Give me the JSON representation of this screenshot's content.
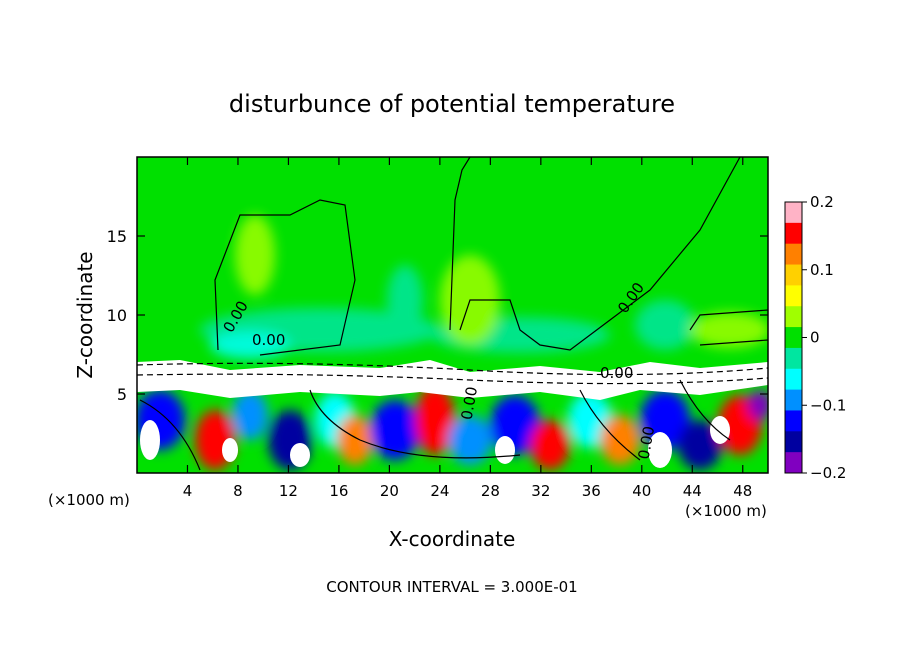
{
  "chart_data": {
    "type": "heatmap",
    "title": "disturbunce of potential temperature",
    "xlabel": "X-coordinate",
    "ylabel": "Z-coordinate",
    "x_unit": "(×1000 m)",
    "y_unit": "(×1000 m)",
    "xlim": [
      0,
      50
    ],
    "ylim": [
      0,
      20
    ],
    "x_ticks": [
      4,
      8,
      12,
      16,
      20,
      24,
      28,
      32,
      36,
      40,
      44,
      48
    ],
    "y_ticks": [
      5,
      10,
      15
    ],
    "colorbar": {
      "range": [
        -0.2,
        0.2
      ],
      "tick_values": [
        0.2,
        0.1,
        0,
        -0.1,
        -0.2
      ],
      "tick_labels": [
        "0.2",
        "0.1",
        "0",
        "−0.1",
        "−0.2"
      ],
      "colors": [
        "#ffb3c6",
        "#ff0000",
        "#ff8000",
        "#ffd000",
        "#ffff00",
        "#a0ff00",
        "#00e000",
        "#00e6a0",
        "#00ffff",
        "#0090ff",
        "#0000ff",
        "#0000a0",
        "#8000c0"
      ]
    },
    "contour_label": "0.00",
    "contour_interval_text": "CONTOUR INTERVAL = 3.000E-01",
    "regions": {
      "upper_background": "near 0 (green)",
      "inversion_height_km": 7.2,
      "lower_layer": "turbulent, values ranging from -0.2 to 0.2"
    }
  }
}
